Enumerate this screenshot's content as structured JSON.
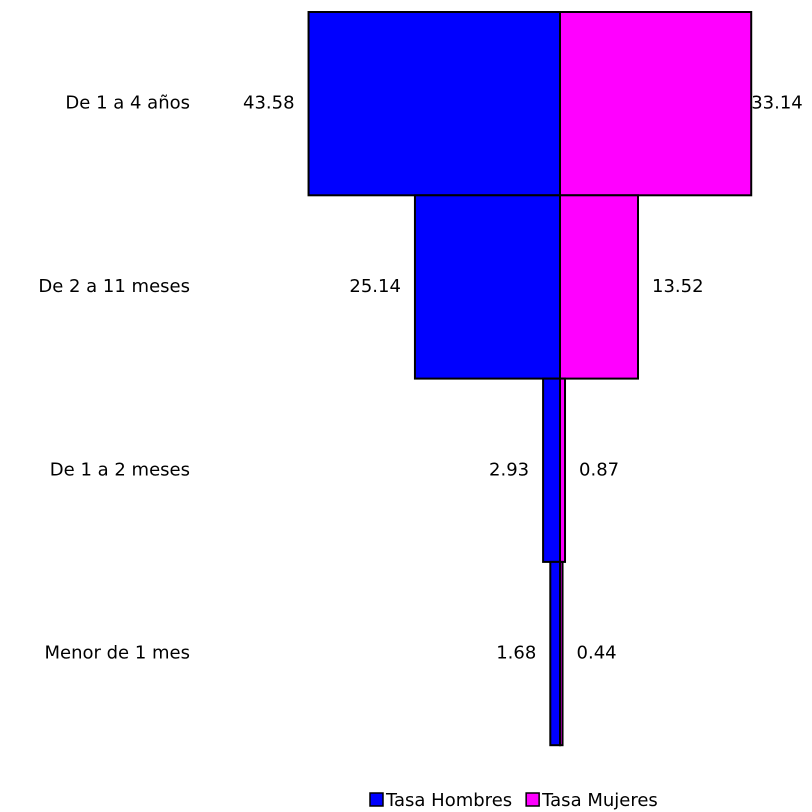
{
  "chart_data": {
    "type": "pyramid",
    "categories": [
      "De 1 a 4 años",
      "De 2 a 11 meses",
      "De 1 a 2 meses",
      "Menor de 1 mes"
    ],
    "series": [
      {
        "name": "Tasa Hombres",
        "color": "#0000ff",
        "values": [
          43.58,
          25.14,
          2.93,
          1.68
        ]
      },
      {
        "name": "Tasa Mujeres",
        "color": "#ff00ff",
        "values": [
          33.14,
          13.52,
          0.87,
          0.44
        ]
      }
    ],
    "legend": "bottom"
  }
}
